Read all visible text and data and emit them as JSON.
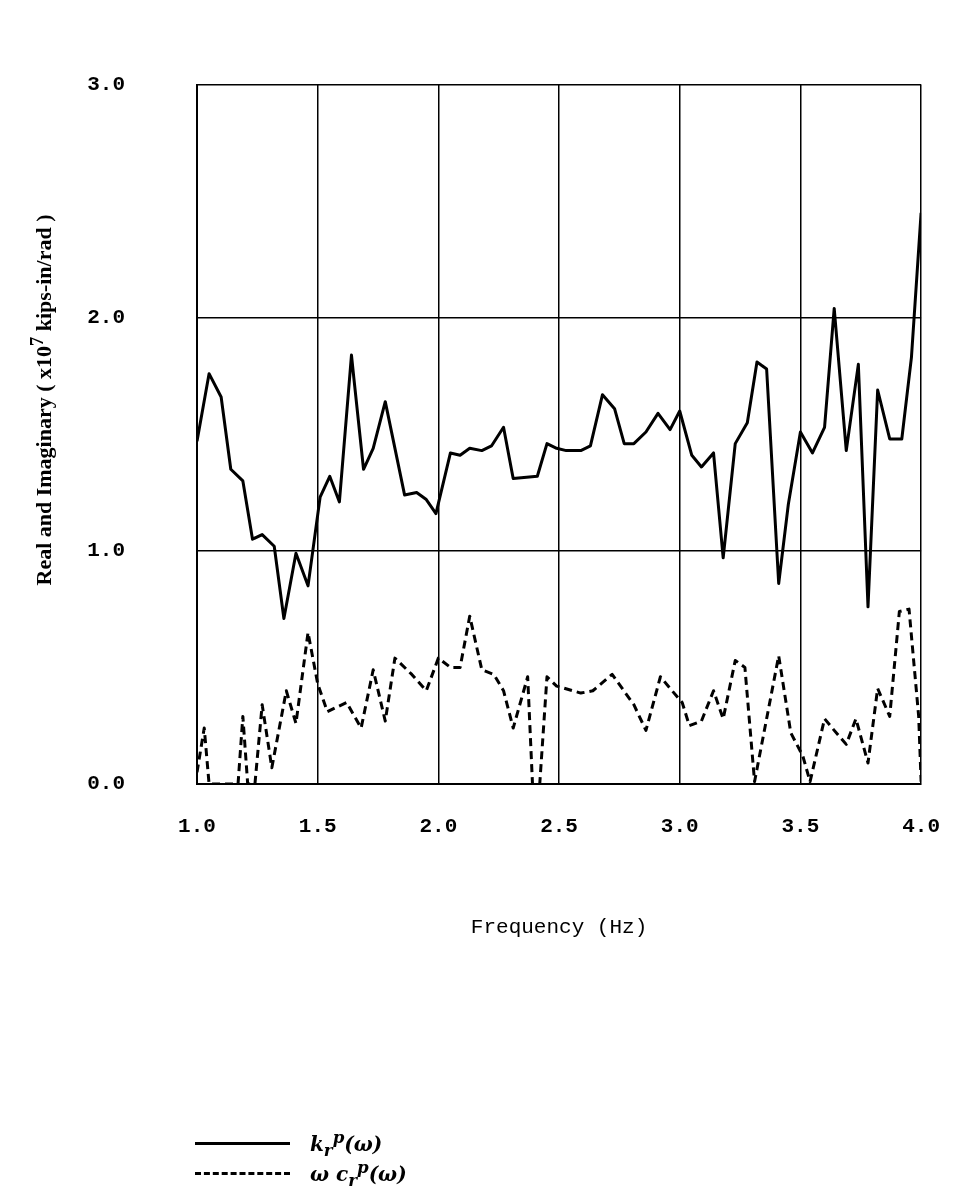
{
  "chart_data": {
    "type": "line",
    "xlabel": "Frequency (Hz)",
    "ylabel": "Real and Imaginary ( x10$^{7}$ kips-in/rad )",
    "xlim": [
      1.0,
      4.0
    ],
    "xticks": [
      {
        "value": 1,
        "label": "1.0"
      },
      {
        "value": 1.5,
        "label": "1.5"
      },
      {
        "value": 2,
        "label": "2.0"
      },
      {
        "value": 2.5,
        "label": "2.5"
      },
      {
        "value": 3,
        "label": "3.0"
      },
      {
        "value": 3.5,
        "label": "3.5"
      },
      {
        "value": 4,
        "label": "4.0"
      }
    ],
    "ylim": [
      0,
      3.0
    ],
    "yticks": [
      {
        "value": 0,
        "label": "0.0"
      },
      {
        "value": 1,
        "label": "1.0"
      },
      {
        "value": 2,
        "label": "2.0"
      },
      {
        "value": 3,
        "label": "3.0"
      }
    ],
    "grid": true,
    "legend": "bottom left",
    "series": [
      {
        "name": "k$_{r}$$^{p}$(ω)",
        "color": "#000000",
        "line_style": "solid",
        "x": [
          1.0,
          1.05,
          1.1,
          1.14,
          1.19,
          1.23,
          1.27,
          1.32,
          1.36,
          1.41,
          1.46,
          1.51,
          1.55,
          1.59,
          1.64,
          1.65,
          1.69,
          1.73,
          1.78,
          1.86,
          1.91,
          1.95,
          1.99,
          2.05,
          2.09,
          2.13,
          2.18,
          2.22,
          2.27,
          2.31,
          2.41,
          2.45,
          2.49,
          2.53,
          2.59,
          2.63,
          2.68,
          2.73,
          2.77,
          2.81,
          2.86,
          2.91,
          2.96,
          3.0,
          3.05,
          3.09,
          3.14,
          3.18,
          3.23,
          3.28,
          3.32,
          3.36,
          3.41,
          3.45,
          3.5,
          3.55,
          3.6,
          3.64,
          3.69,
          3.74,
          3.78,
          3.82,
          3.87,
          3.92,
          3.96,
          4.0
        ],
        "values": [
          1.47,
          1.76,
          1.66,
          1.35,
          1.3,
          1.05,
          1.07,
          1.02,
          0.71,
          0.99,
          0.85,
          1.23,
          1.32,
          1.21,
          1.84,
          1.74,
          1.35,
          1.44,
          1.64,
          1.24,
          1.25,
          1.22,
          1.16,
          1.42,
          1.41,
          1.44,
          1.43,
          1.45,
          1.53,
          1.31,
          1.32,
          1.46,
          1.44,
          1.43,
          1.43,
          1.45,
          1.67,
          1.61,
          1.46,
          1.46,
          1.51,
          1.59,
          1.52,
          1.6,
          1.41,
          1.36,
          1.42,
          0.97,
          1.46,
          1.55,
          1.81,
          1.78,
          0.86,
          1.2,
          1.51,
          1.42,
          1.53,
          2.04,
          1.43,
          1.8,
          0.76,
          1.69,
          1.48,
          1.48,
          1.83,
          2.45
        ]
      },
      {
        "name": "ω c$_{r}$$^{p}$(ω)",
        "color": "#000000",
        "line_style": "dashed",
        "x": [
          1.0,
          1.03,
          1.05,
          1.17,
          1.19,
          1.21,
          1.24,
          1.27,
          1.31,
          1.37,
          1.41,
          1.46,
          1.5,
          1.54,
          1.62,
          1.68,
          1.73,
          1.78,
          1.82,
          1.89,
          1.95,
          2.0,
          2.05,
          2.09,
          2.13,
          2.18,
          2.23,
          2.27,
          2.31,
          2.37,
          2.39,
          2.42,
          2.45,
          2.49,
          2.59,
          2.64,
          2.72,
          2.81,
          2.86,
          2.92,
          2.96,
          3.01,
          3.04,
          3.09,
          3.14,
          3.18,
          3.23,
          3.27,
          3.31,
          3.41,
          3.46,
          3.51,
          3.54,
          3.6,
          3.64,
          3.69,
          3.73,
          3.78,
          3.82,
          3.87,
          3.91,
          3.95,
          3.99,
          4.0
        ],
        "values": [
          0.05,
          0.24,
          0.0,
          0.0,
          0.29,
          0.0,
          0.0,
          0.34,
          0.07,
          0.4,
          0.26,
          0.65,
          0.43,
          0.31,
          0.35,
          0.24,
          0.49,
          0.27,
          0.54,
          0.47,
          0.4,
          0.54,
          0.5,
          0.5,
          0.72,
          0.49,
          0.47,
          0.4,
          0.24,
          0.46,
          0.0,
          0.0,
          0.46,
          0.42,
          0.39,
          0.4,
          0.47,
          0.34,
          0.23,
          0.46,
          0.41,
          0.35,
          0.25,
          0.27,
          0.4,
          0.28,
          0.53,
          0.5,
          0.01,
          0.55,
          0.22,
          0.12,
          0.01,
          0.28,
          0.23,
          0.17,
          0.28,
          0.09,
          0.41,
          0.29,
          0.74,
          0.75,
          0.29,
          0.01
        ]
      }
    ]
  }
}
